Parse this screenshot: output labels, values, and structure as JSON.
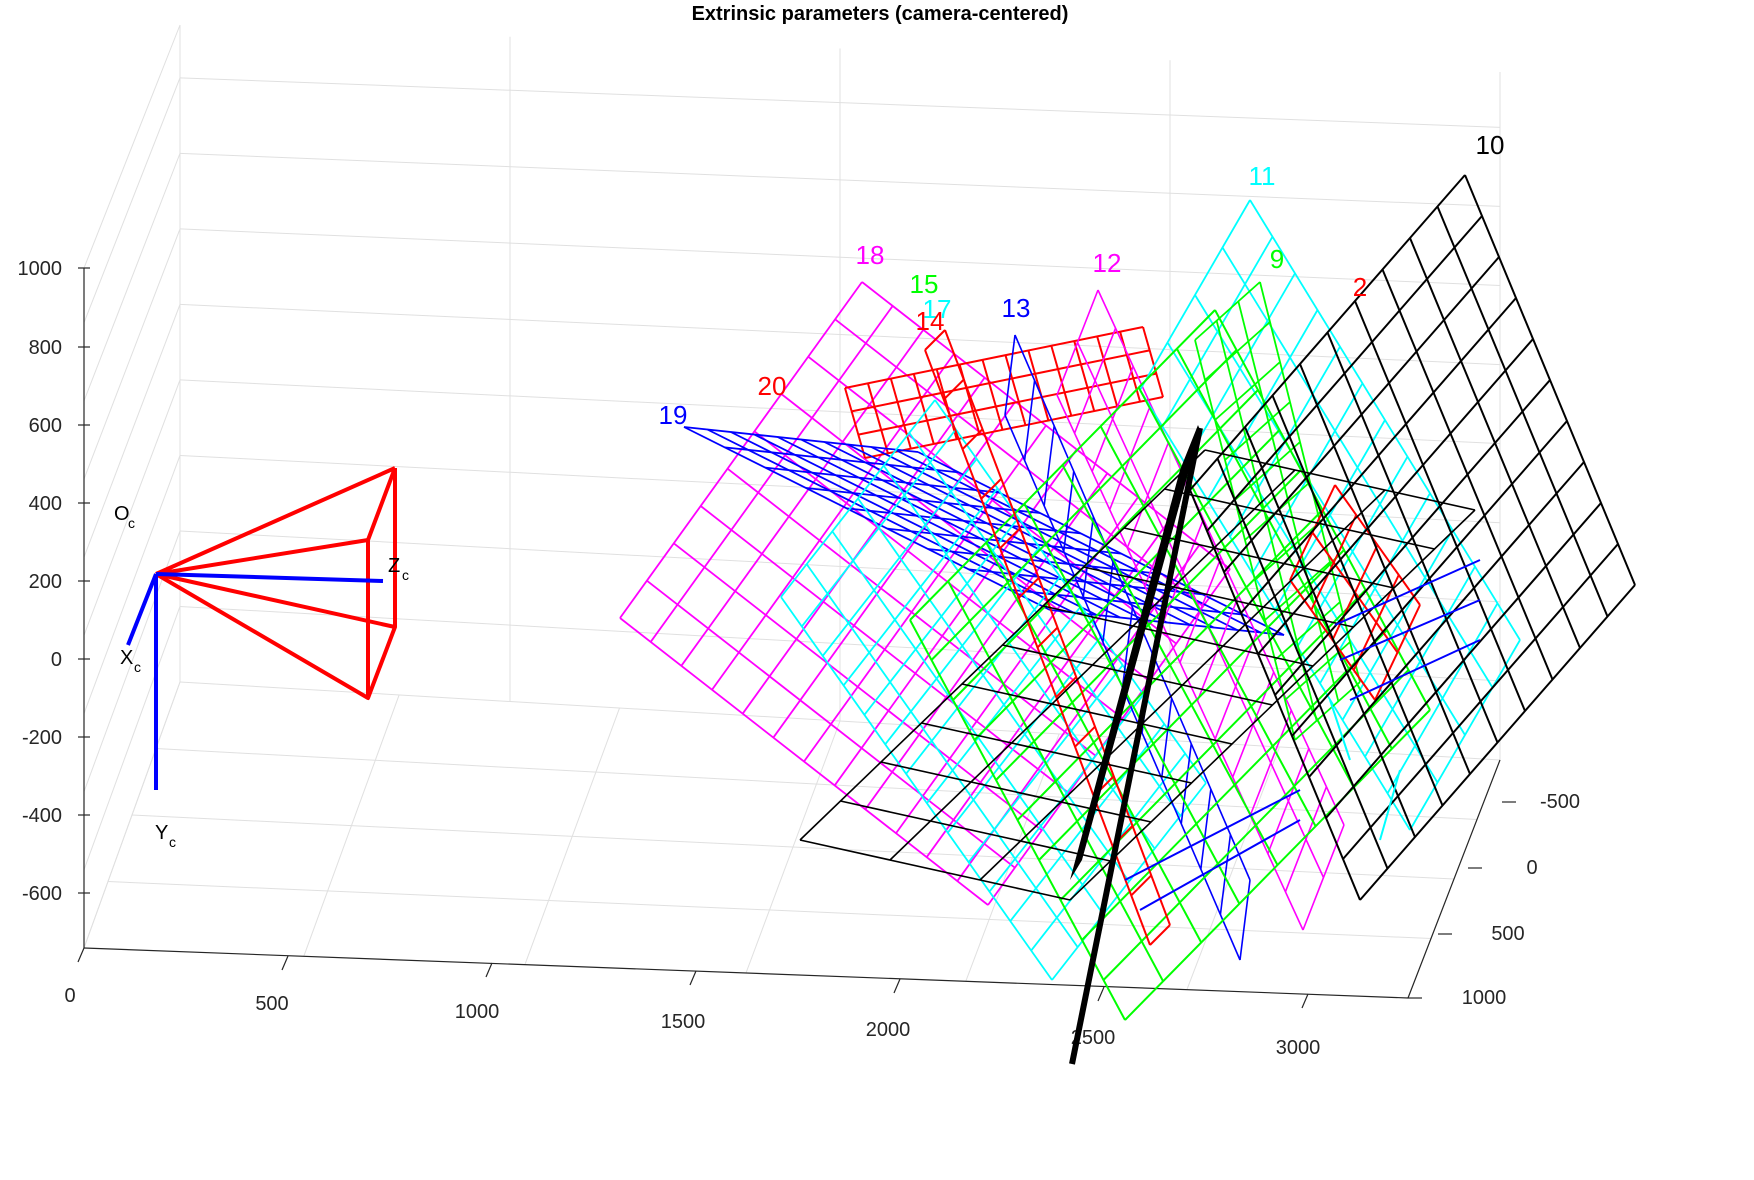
{
  "chart_data": {
    "type": "line",
    "title": "Extrinsic parameters (camera-centered)",
    "axes": {
      "x": {
        "ticks": [
          "0",
          "500",
          "1000",
          "1500",
          "2000",
          "2500",
          "3000"
        ]
      },
      "y": {
        "ticks": [
          "-500",
          "0",
          "500",
          "1000"
        ]
      },
      "z": {
        "ticks": [
          "1000",
          "800",
          "600",
          "400",
          "200",
          "0",
          "-200",
          "-400",
          "-600"
        ]
      },
      "grid": true
    },
    "camera": {
      "origin_label": "O",
      "x_label": "X",
      "y_label": "Y",
      "z_label": "Z",
      "subscript": "c",
      "frustum_color": "#ff0000",
      "axis_color": "#0000ff"
    },
    "series": [
      {
        "name": "10",
        "color": "#000000"
      },
      {
        "name": "11",
        "color": "#00ffff"
      },
      {
        "name": "9",
        "color": "#00ff00"
      },
      {
        "name": "2",
        "color": "#ff0000"
      },
      {
        "name": "12",
        "color": "#ff00ff"
      },
      {
        "name": "13",
        "color": "#0000ff"
      },
      {
        "name": "18",
        "color": "#ff00ff"
      },
      {
        "name": "15",
        "color": "#00ff00"
      },
      {
        "name": "17",
        "color": "#00ffff"
      },
      {
        "name": "14",
        "color": "#ff0000"
      },
      {
        "name": "20",
        "color": "#ff0000"
      },
      {
        "name": "19",
        "color": "#0000ff"
      }
    ]
  }
}
